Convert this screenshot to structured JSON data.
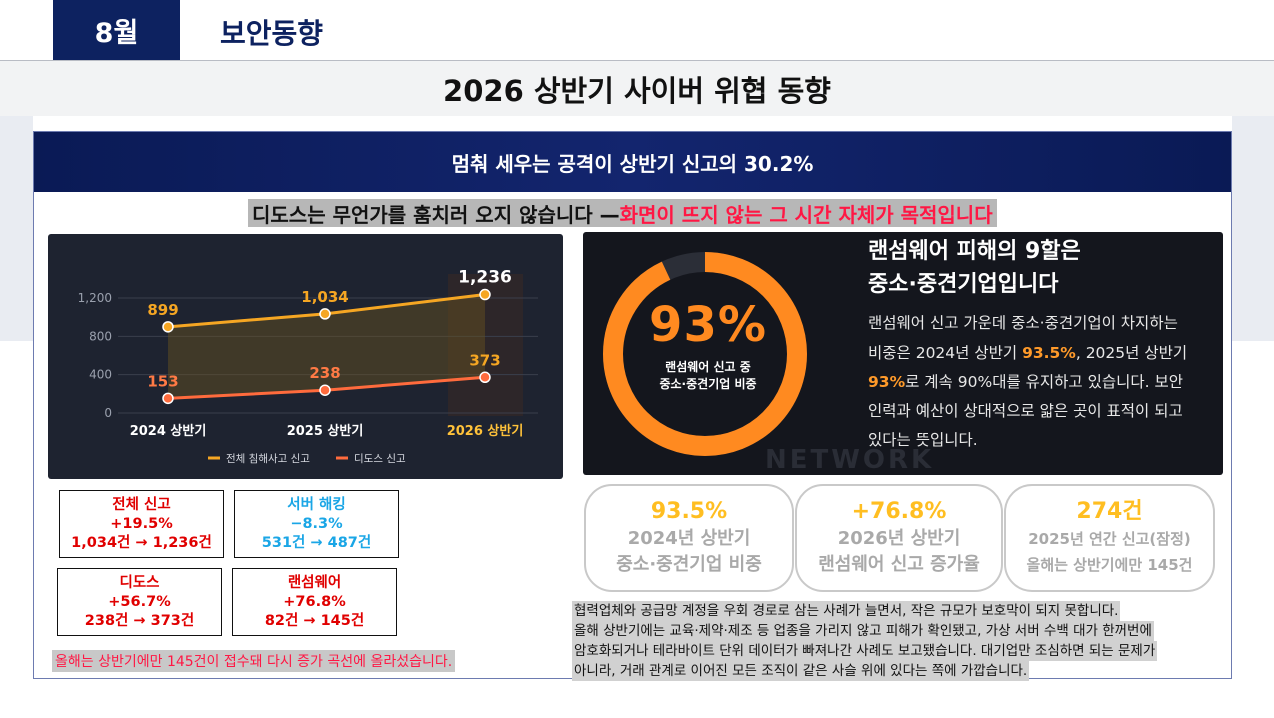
{
  "header": {
    "month_tab": "8월",
    "section_title": "보안동향",
    "main_title": "2026 상반기 사이버 위협 동향"
  },
  "banner": "멈춰 세우는 공격이 상반기 신고의 30.2%",
  "tagline": {
    "part1": "디도스는 무언가를 훔치러 오지 않습니다 — ",
    "part2": "화면이 뜨지 않는 그 시간 자체가 목적입니다"
  },
  "colors": {
    "navy": "#0d2260",
    "accent_red": "#ff1744",
    "orange": "#ff8a20",
    "gold": "#f5a623",
    "kpi_yellow": "#ffbe21"
  },
  "chart_data": {
    "type": "line",
    "categories": [
      "2024 상반기",
      "2025 상반기",
      "2026 상반기"
    ],
    "series": [
      {
        "name": "전체 침해사고 신고",
        "values": [
          899,
          1034,
          1236
        ],
        "color": "#f5a623"
      },
      {
        "name": "디도스 신고",
        "values": [
          153,
          238,
          373
        ],
        "color": "#ff6b3d"
      }
    ],
    "yticks": [
      "0",
      "400",
      "800",
      "1,200"
    ],
    "ylim": [
      0,
      1300
    ],
    "point_labels": [
      [
        "899",
        "1,034",
        "1,236"
      ],
      [
        "153",
        "238",
        "373"
      ]
    ],
    "legend_position": "bottom",
    "highlight_category": "2026 상반기"
  },
  "stat_boxes": [
    {
      "title": "전체 신고",
      "change": "+19.5%",
      "detail": "1,034건 → 1,236건"
    },
    {
      "title": "서버 해킹",
      "change": "−8.3%",
      "detail": "531건 → 487건"
    },
    {
      "title": "디도스",
      "change": "+56.7%",
      "detail": "238건 → 373건"
    },
    {
      "title": "랜섬웨어",
      "change": "+76.8%",
      "detail": "82건 → 145건"
    }
  ],
  "left_note": "올해는 상반기에만 145건이 접수돼 다시 증가 곡선에 올라섰습니다.",
  "ransomware": {
    "ring_value": "93%",
    "ring_fill": 0.93,
    "ring_caption_1": "랜섬웨어 신고 중",
    "ring_caption_2": "중소·중견기업 비중",
    "heading_1": "랜섬웨어 피해의 9할은",
    "heading_2": "중소·중견기업입니다",
    "line1": "랜섬웨어 신고 가운데 중소·중견기업이 차지하는",
    "line2_a": "비중은 2024년 상반기 ",
    "line2_b": "93.5%",
    "line2_c": ", 2025년 상반기",
    "line3_a": "93%",
    "line3_b": "로 계속 90%대를 유지하고 있습니다. 보안",
    "line4": "인력과 예산이 상대적으로 얇은 곳이 표적이 되고",
    "line5": "있다는 뜻입니다.",
    "watermark": "NETWORK"
  },
  "kpis": [
    {
      "value": "93.5%",
      "line1": "2024년 상반기",
      "line2": "중소·중견기업 비중"
    },
    {
      "value": "+76.8%",
      "line1": "2026년 상반기",
      "line2": "랜섬웨어 신고 증가율"
    },
    {
      "value": "274건",
      "line1": "2025년 연간 신고(잠정)",
      "line2": "올해는 상반기에만 145건"
    }
  ],
  "paragraph": [
    "협력업체와 공급망 계정을 우회 경로로 삼는 사례가 늘면서, 작은 규모가 보호막이 되지 못합니다.",
    "올해 상반기에는 교육·제약·제조 등 업종을 가리지 않고 피해가 확인됐고, 가상 서버 수백 대가 한꺼번에",
    "암호화되거나 테라바이트 단위 데이터가 빠져나간 사례도 보고됐습니다. 대기업만 조심하면 되는 문제가",
    "아니라, 거래 관계로 이어진 모든 조직이 같은 사슬 위에 있다는 쪽에 가깝습니다."
  ]
}
